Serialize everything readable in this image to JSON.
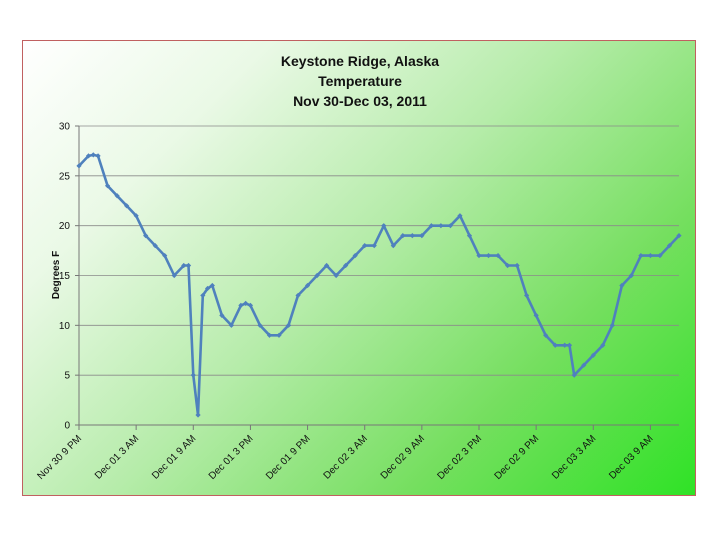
{
  "chart_data": {
    "type": "line",
    "title": [
      "Keystone Ridge, Alaska",
      "Temperature",
      "Nov 30-Dec 03, 2011"
    ],
    "ylabel": "Degrees F",
    "xlabel": "",
    "ylim": [
      0,
      30
    ],
    "yticks": [
      0,
      5,
      10,
      15,
      20,
      25,
      30
    ],
    "xrange_hours": [
      0,
      63
    ],
    "xticks": [
      {
        "hour": 0,
        "label": "Nov 30 9 PM"
      },
      {
        "hour": 6,
        "label": "Dec 01 3 AM"
      },
      {
        "hour": 12,
        "label": "Dec 01 9 AM"
      },
      {
        "hour": 18,
        "label": "Dec 01 3 PM"
      },
      {
        "hour": 24,
        "label": "Dec 01 9 PM"
      },
      {
        "hour": 30,
        "label": "Dec 02 3 AM"
      },
      {
        "hour": 36,
        "label": "Dec 02 9 AM"
      },
      {
        "hour": 42,
        "label": "Dec 02 3 PM"
      },
      {
        "hour": 48,
        "label": "Dec 02 9 PM"
      },
      {
        "hour": 54,
        "label": "Dec 03 3 AM"
      },
      {
        "hour": 60,
        "label": "Dec 03 9 AM"
      }
    ],
    "grid": "horizontal",
    "line_color": "#4f81bd",
    "x": [
      0,
      1,
      1.5,
      2,
      3,
      4,
      5,
      6,
      7,
      8,
      9,
      10,
      11,
      11.5,
      12,
      12.5,
      13,
      13.5,
      14,
      15,
      16,
      17,
      17.5,
      18,
      19,
      20,
      21,
      22,
      23,
      24,
      25,
      26,
      27,
      28,
      29,
      30,
      31,
      32,
      33,
      34,
      35,
      36,
      37,
      38,
      39,
      40,
      41,
      42,
      43,
      44,
      45,
      46,
      47,
      48,
      49,
      50,
      51,
      51.5,
      52,
      53,
      54,
      55,
      56,
      57,
      58,
      59,
      60,
      61,
      62,
      63
    ],
    "y": [
      26,
      27,
      27.1,
      27,
      24,
      23,
      22,
      21,
      19,
      18,
      17,
      15,
      16,
      16,
      5,
      1,
      13,
      13.7,
      14,
      11,
      10,
      12,
      12.2,
      12,
      10,
      9,
      9,
      10,
      13,
      14,
      15,
      16,
      15,
      16,
      17,
      18,
      18,
      20,
      18,
      19,
      19,
      19,
      20,
      20,
      20,
      21,
      19,
      17,
      17,
      17,
      16,
      16,
      13,
      11,
      9,
      8,
      8,
      8,
      5,
      6,
      7,
      8,
      10,
      14,
      15,
      17,
      17,
      17,
      18,
      19
    ]
  }
}
